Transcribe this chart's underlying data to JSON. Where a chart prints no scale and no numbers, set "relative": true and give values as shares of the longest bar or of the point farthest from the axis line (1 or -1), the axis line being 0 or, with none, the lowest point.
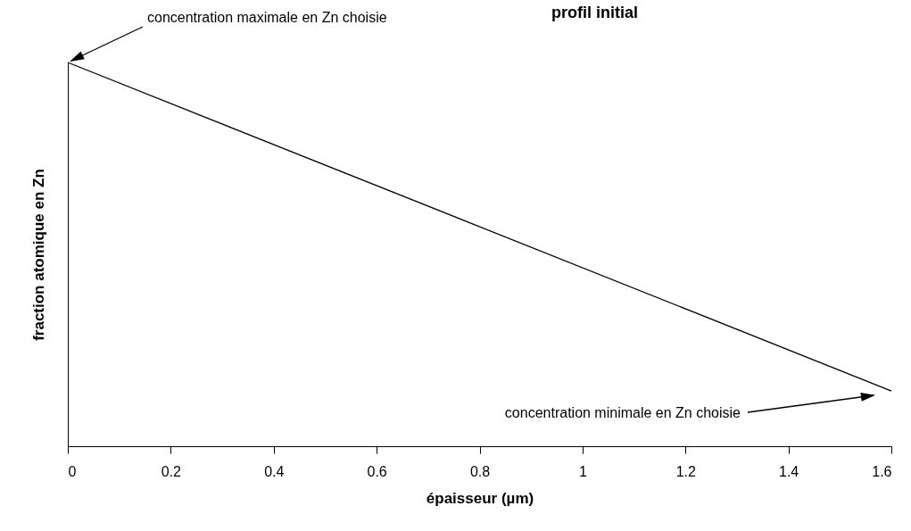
{
  "chart_data": {
    "type": "line",
    "title": "profil initial",
    "xlabel": "épaisseur (µm)",
    "ylabel": "fraction atomique en Zn",
    "relative": true,
    "x": [
      0,
      1.6
    ],
    "series": [
      {
        "color": "#000000",
        "values": [
          1,
          0.144
        ]
      }
    ],
    "xlim": [
      0,
      1.6
    ],
    "xticks": [
      0,
      0.2,
      0.4,
      0.6,
      0.8,
      1,
      1.2,
      1.4,
      1.6
    ],
    "annotations": [
      "concentration maximale en Zn choisie",
      "concentration minimale en Zn choisie"
    ],
    "grid": false,
    "marker": "none"
  }
}
